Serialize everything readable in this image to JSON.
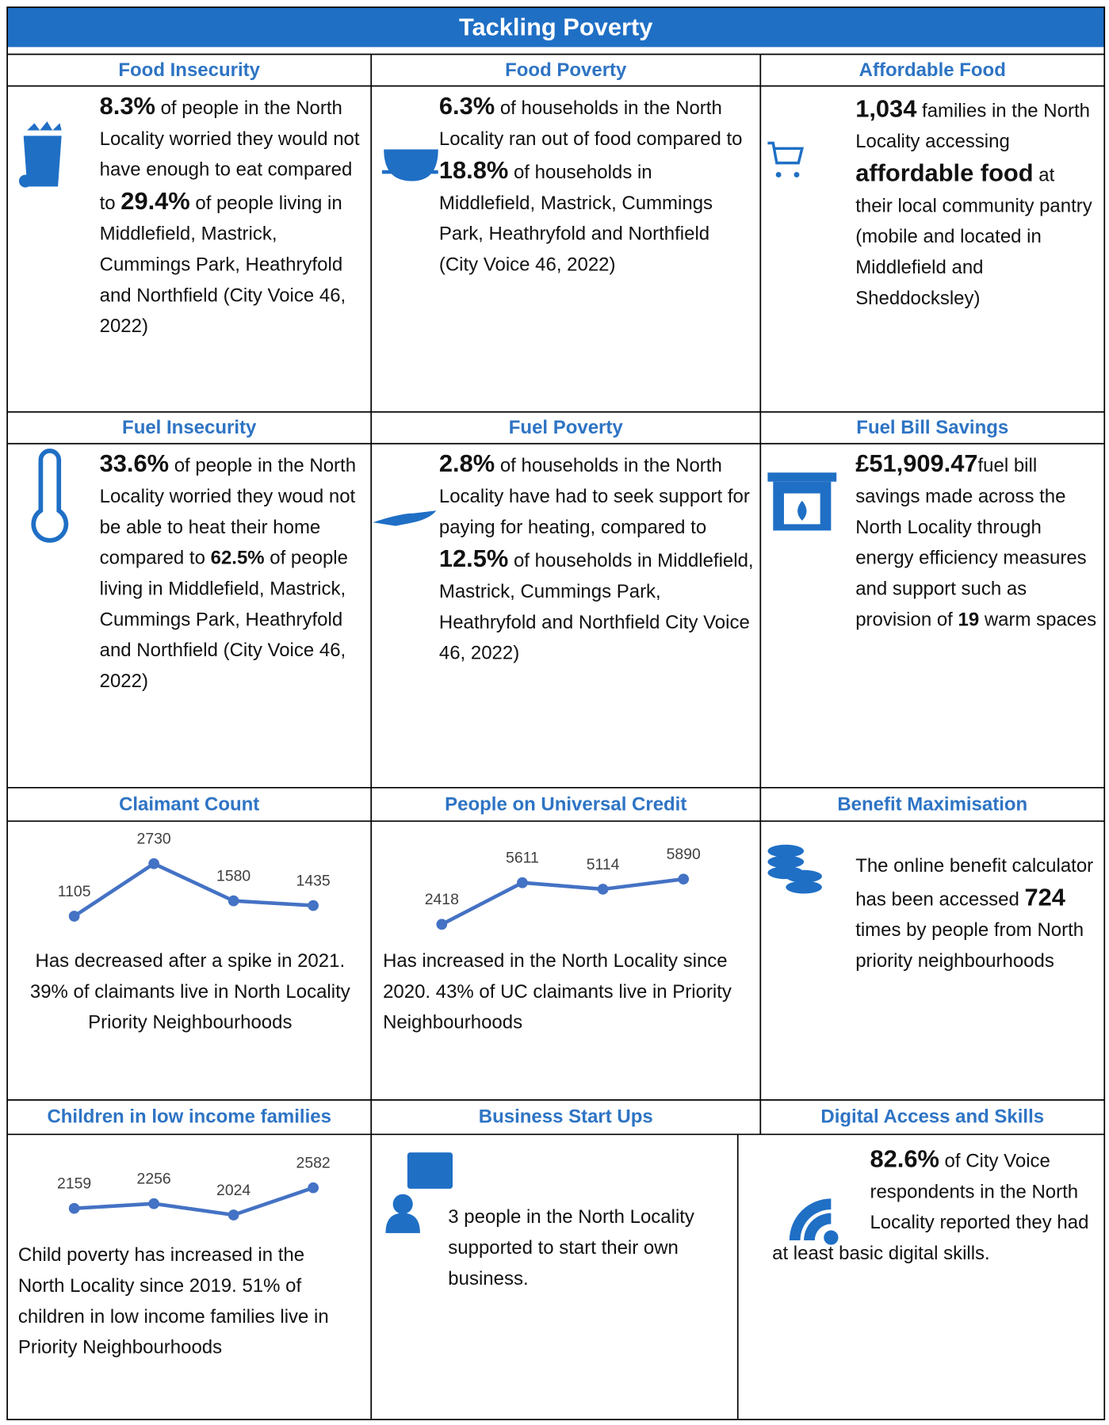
{
  "title": "Tackling Poverty",
  "cells": [
    {
      "heading": "Food Insecurity",
      "body": [
        {
          "text": "8.3%",
          "emphasis": "large"
        },
        {
          "text": " of people in the North Locality worried they would not have enough to eat compared to "
        },
        {
          "text": "29.4%",
          "emphasis": "large"
        },
        {
          "text": " of people living in Middlefield, Mastrick, Cummings Park, Heathryfold and Northfield (City Voice 46, 2022)"
        }
      ]
    },
    {
      "heading": "Food Poverty",
      "body": [
        {
          "text": "6.3%",
          "emphasis": "large"
        },
        {
          "text": " of households in the North Locality ran out of food compared to "
        },
        {
          "text": "18.8%",
          "emphasis": "large"
        },
        {
          "text": " of households in Middlefield, Mastrick, Cummings Park, Heathryfold and Northfield (City Voice 46, 2022)"
        }
      ]
    },
    {
      "heading": "Affordable Food",
      "body": [
        {
          "text": "1,034",
          "emphasis": "large"
        },
        {
          "text": " families in the North Locality accessing "
        },
        {
          "text": "affordable food",
          "emphasis": "large"
        },
        {
          "text": " at their local community pantry (mobile and located in Middlefield and Sheddocksley)"
        }
      ]
    },
    {
      "heading": "Fuel Insecurity",
      "body": [
        {
          "text": "33.6%",
          "emphasis": "large"
        },
        {
          "text": " of people in the North Locality worried they woud not be able to heat their home compared to "
        },
        {
          "text": "62.5%",
          "emphasis": "bold"
        },
        {
          "text": " of people living in Middlefield, Mastrick, Cummings Park, Heathryfold and Northfield (City Voice 46, 2022)"
        }
      ]
    },
    {
      "heading": "Fuel Poverty",
      "body": [
        {
          "text": "2.8%",
          "emphasis": "large"
        },
        {
          "text": " of households in the North Locality have had to seek support for paying for heating, compared to "
        },
        {
          "text": "12.5%",
          "emphasis": "large"
        },
        {
          "text": " of households in Middlefield, Mastrick, Cummings Park, Heathryfold and Northfield City Voice 46, 2022)"
        }
      ]
    },
    {
      "heading": "Fuel Bill Savings",
      "body": [
        {
          "text": "£51,909.47",
          "emphasis": "large"
        },
        {
          "text": "fuel bill savings made across the North Locality through energy efficiency measures and support such as provision of "
        },
        {
          "text": "19",
          "emphasis": "bold"
        },
        {
          "text": " warm spaces"
        }
      ]
    },
    {
      "heading": "Claimant Count",
      "body": [
        {
          "text": "Has decreased after a spike in 2021.  39% of claimants live in North Locality Priority Neighbourhoods"
        }
      ]
    },
    {
      "heading": "People on Universal Credit",
      "body": [
        {
          "text": "Has increased in the North Locality since 2020. 43% of UC claimants live in Priority Neighbourhoods"
        }
      ]
    },
    {
      "heading": "Benefit Maximisation",
      "body": [
        {
          "text": "The online benefit calculator has been accessed "
        },
        {
          "text": "724",
          "emphasis": "large"
        },
        {
          "text": " times by people from North priority neighbourhoods"
        }
      ]
    },
    {
      "heading": "Children in low income families",
      "body": [
        {
          "text": "Child poverty has increased in the North Locality since 2019. 51% of children in low income families live in Priority Neighbourhoods"
        }
      ]
    },
    {
      "heading": "Business Start Ups",
      "body": [
        {
          "text": "3 people in the North Locality supported to start their own business."
        }
      ]
    },
    {
      "heading": "Digital Access and Skills",
      "body": [
        {
          "text": "82.6%",
          "emphasis": "large"
        },
        {
          "text": " of City Voice respondents in the North Locality reported they had at least basic digital skills."
        }
      ]
    }
  ],
  "chart_data": [
    {
      "type": "line",
      "values": [
        1105,
        2730,
        1580,
        1435
      ],
      "color": "#4472c4"
    },
    {
      "type": "line",
      "values": [
        2418,
        5611,
        5114,
        5890
      ],
      "color": "#4472c4"
    },
    {
      "type": "line",
      "values": [
        2159,
        2256,
        2024,
        2582
      ],
      "color": "#4472c4"
    }
  ]
}
